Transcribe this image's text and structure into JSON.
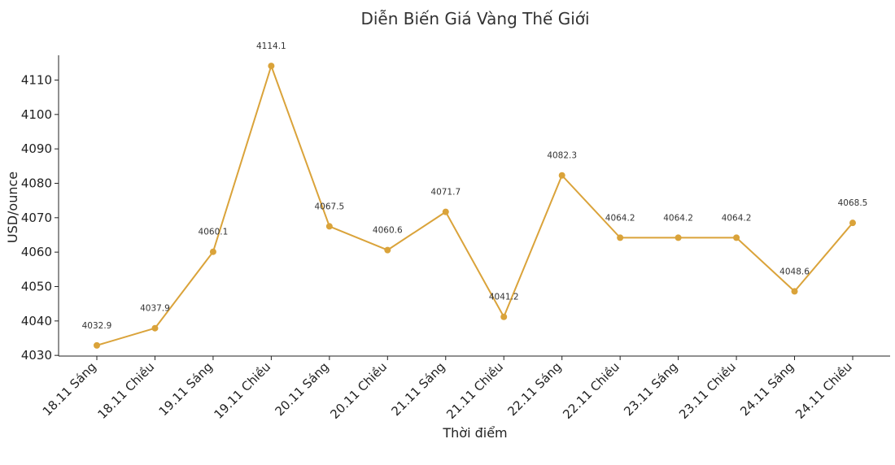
{
  "chart_data": {
    "type": "line",
    "title": "Diễn Biến Giá Vàng Thế Giới",
    "xlabel": "Thời điểm",
    "ylabel": "USD/ounce",
    "categories": [
      "18.11 Sáng",
      "18.11 Chiều",
      "19.11 Sáng",
      "19.11 Chiều",
      "20.11 Sáng",
      "20.11 Chiều",
      "21.11 Sáng",
      "21.11 Chiều",
      "22.11 Sáng",
      "22.11 Chiều",
      "23.11 Sáng",
      "23.11 Chiều",
      "24.11 Sáng",
      "24.11 Chiều"
    ],
    "series": [
      {
        "values": [
          4032.9,
          4037.9,
          4060.1,
          4114.1,
          4067.5,
          4060.6,
          4071.7,
          4041.2,
          4082.3,
          4064.2,
          4064.2,
          4064.2,
          4048.6,
          4068.5
        ],
        "color": "#DAA33A"
      }
    ],
    "ylim": [
      4029.8,
      4117.2
    ],
    "yticks": [
      4030,
      4040,
      4050,
      4060,
      4070,
      4080,
      4090,
      4100,
      4110
    ],
    "grid": false,
    "legend": "none"
  }
}
